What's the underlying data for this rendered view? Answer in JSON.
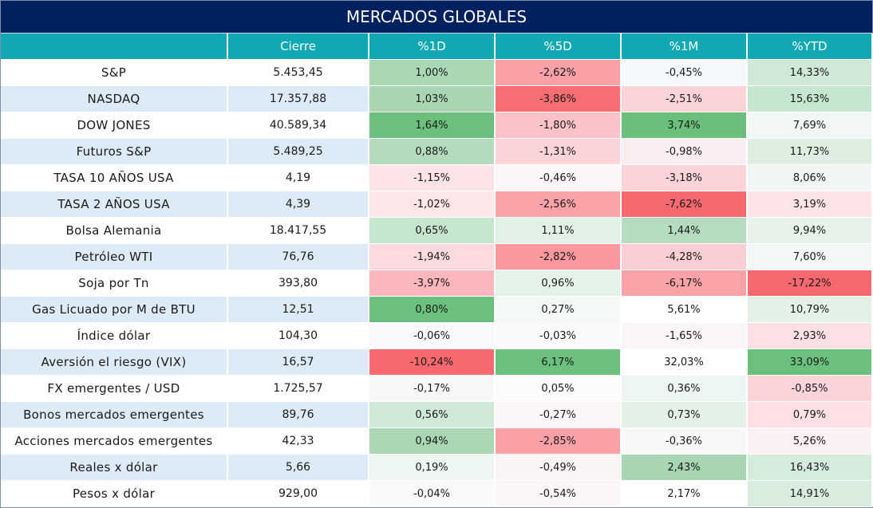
{
  "title": "MERCADOS GLOBALES",
  "headers": [
    "",
    "Cierre",
    "%1D",
    "%5D",
    "%1M",
    "%YTD"
  ],
  "rows": [
    {
      "name": "S&P",
      "close": "5.453,45",
      "d1": "1,00%",
      "d5": "-2,62%",
      "m1": "-0,45%",
      "ytd": "14,33%",
      "colors": [
        "#aad7b4",
        "#f9a1a6",
        "#f6f9fb",
        "#cfe9d6"
      ]
    },
    {
      "name": "NASDAQ",
      "close": "17.357,88",
      "d1": "1,03%",
      "d5": "-3,86%",
      "m1": "-2,51%",
      "ytd": "15,63%",
      "colors": [
        "#a8d6b2",
        "#f66e73",
        "#fbd4d8",
        "#c7e6cf"
      ]
    },
    {
      "name": "DOW JONES",
      "close": "40.589,34",
      "d1": "1,64%",
      "d5": "-1,80%",
      "m1": "3,74%",
      "ytd": "7,69%",
      "colors": [
        "#6cc07d",
        "#fbc2c7",
        "#6bbf7c",
        "#f1f6f6"
      ]
    },
    {
      "name": "Futuros S&P",
      "close": "5.489,25",
      "d1": "0,88%",
      "d5": "-1,31%",
      "m1": "-0,98%",
      "ytd": "11,73%",
      "colors": [
        "#b3dbbc",
        "#fcd4d8",
        "#fbeef1",
        "#deefe2"
      ]
    },
    {
      "name": "TASA 10 AÑOS USA",
      "close": "4,19",
      "d1": "-1,15%",
      "d5": "-0,46%",
      "m1": "-3,18%",
      "ytd": "8,06%",
      "colors": [
        "#fce3e6",
        "#fbf6f8",
        "#fbd3d8",
        "#f0f6f4"
      ]
    },
    {
      "name": "TASA 2 AÑOS USA",
      "close": "4,39",
      "d1": "-1,02%",
      "d5": "-2,56%",
      "m1": "-7,62%",
      "ytd": "3,19%",
      "colors": [
        "#fce6e9",
        "#f9a3a8",
        "#f8696f",
        "#fce4e7"
      ]
    },
    {
      "name": "Bolsa Alemania",
      "close": "18.417,55",
      "d1": "0,65%",
      "d5": "1,11%",
      "m1": "1,44%",
      "ytd": "9,94%",
      "colors": [
        "#c6e5cd",
        "#e1f1e5",
        "#b5dcbe",
        "#e7f3ea"
      ]
    },
    {
      "name": "Petróleo WTI",
      "close": "76,76",
      "d1": "-1,94%",
      "d5": "-2,82%",
      "m1": "-4,28%",
      "ytd": "7,60%",
      "colors": [
        "#fcdadd",
        "#f9989e",
        "#fbced3",
        "#f2f7f6"
      ]
    },
    {
      "name": "Soja por Tn",
      "close": "393,80",
      "d1": "-3,97%",
      "d5": "0,96%",
      "m1": "-6,17%",
      "ytd": "-17,22%",
      "colors": [
        "#fab7bc",
        "#e5f2e8",
        "#f9a3a8",
        "#f8696f"
      ]
    },
    {
      "name": "Gas Licuado por M de BTU",
      "close": "12,51",
      "d1": "0,80%",
      "d5": "0,27%",
      "m1": "5,61%",
      "ytd": "10,79%",
      "colors": [
        "#6cc07d",
        "#f4f9f5",
        "#ffffff",
        "#e3f1e6"
      ]
    },
    {
      "name": "Índice dólar",
      "close": "104,30",
      "d1": "-0,06%",
      "d5": "-0,03%",
      "m1": "-1,65%",
      "ytd": "2,93%",
      "colors": [
        "#fbf8fa",
        "#fbf9fb",
        "#fbf5f7",
        "#fce0e3"
      ]
    },
    {
      "name": "Aversión el riesgo (VIX)",
      "close": "16,57",
      "d1": "-10,24%",
      "d5": "6,17%",
      "m1": "32,03%",
      "ytd": "33,09%",
      "colors": [
        "#f8696f",
        "#6cc07d",
        "#ffffff",
        "#6cc07d"
      ]
    },
    {
      "name": "FX emergentes / USD",
      "close": "1.725,57",
      "d1": "-0,17%",
      "d5": "0,05%",
      "m1": "0,36%",
      "ytd": "-0,85%",
      "colors": [
        "#f9f7f9",
        "#fafbfc",
        "#eef6f1",
        "#fbd3d8"
      ]
    },
    {
      "name": "Bonos mercados emergentes",
      "close": "89,76",
      "d1": "0,56%",
      "d5": "-0,27%",
      "m1": "0,73%",
      "ytd": "0,79%",
      "colors": [
        "#d0e9d6",
        "#fbf6f8",
        "#e4f1e7",
        "#fce0e3"
      ]
    },
    {
      "name": "Acciones mercados emergentes",
      "close": "42,33",
      "d1": "0,94%",
      "d5": "-2,85%",
      "m1": "-0,36%",
      "ytd": "5,26%",
      "colors": [
        "#a9d6b3",
        "#f9a1a6",
        "#f8f7f9",
        "#fbf1f3"
      ]
    },
    {
      "name": "Reales x dólar",
      "close": "5,66",
      "d1": "0,19%",
      "d5": "-0,49%",
      "m1": "2,43%",
      "ytd": "16,43%",
      "colors": [
        "#eef6f1",
        "#fbf4f6",
        "#a8d6b2",
        "#d5ebdb"
      ]
    },
    {
      "name": "Pesos x dólar",
      "close": "929,00",
      "d1": "-0,04%",
      "d5": "-0,54%",
      "m1": "2,17%",
      "ytd": "14,91%",
      "colors": [
        "#fafafc",
        "#fbf5f7",
        "#ffffff",
        "#d9eddf"
      ]
    }
  ]
}
